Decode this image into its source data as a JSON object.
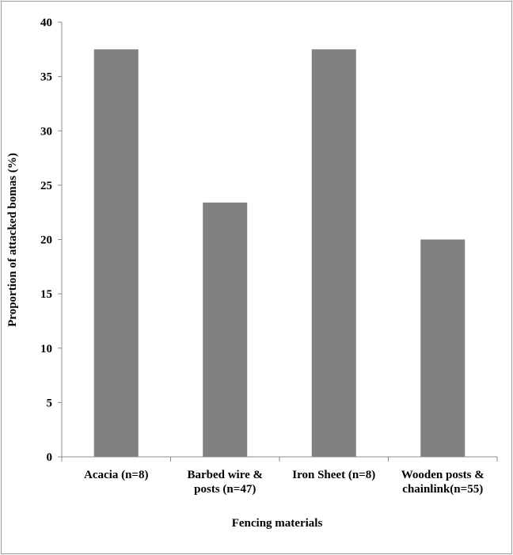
{
  "chart_data": {
    "type": "bar",
    "title": "",
    "xlabel": "Fencing materials",
    "ylabel": "Proportion of attacked bomas (%)",
    "ylim": [
      0,
      40
    ],
    "yticks": [
      0,
      5,
      10,
      15,
      20,
      25,
      30,
      35,
      40
    ],
    "grid": false,
    "legend": "none",
    "bar_color": "#808080",
    "categories": [
      [
        "Acacia (n=8)"
      ],
      [
        "Barbed wire &",
        "posts (n=47)"
      ],
      [
        "Iron Sheet (n=8)"
      ],
      [
        "Wooden posts &",
        "chainlink(n=55)"
      ]
    ],
    "values": [
      37.5,
      23.4,
      37.5,
      20.0
    ]
  }
}
